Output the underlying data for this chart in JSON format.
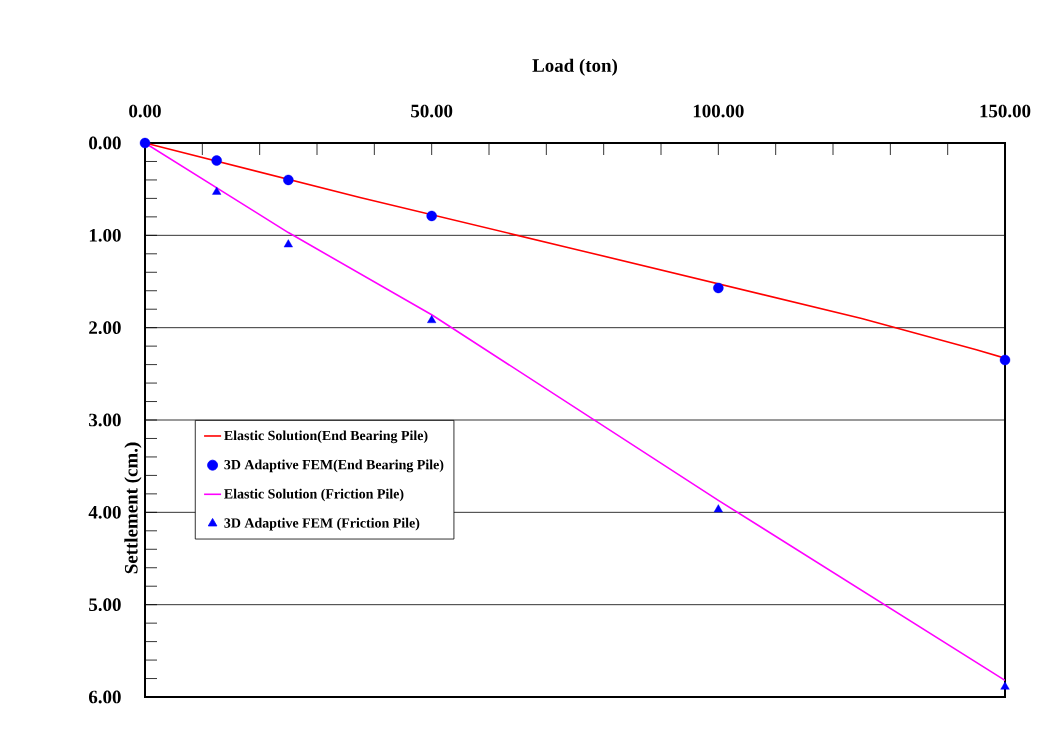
{
  "chart_data": {
    "type": "line",
    "xlabel": "Load (ton)",
    "ylabel": "Settlement (cm.)",
    "xlim": [
      0,
      150
    ],
    "ylim": [
      6,
      0
    ],
    "xticks": [
      {
        "value": 0,
        "label": "0.00"
      },
      {
        "value": 10,
        "label": null
      },
      {
        "value": 20,
        "label": null
      },
      {
        "value": 30,
        "label": null
      },
      {
        "value": 40,
        "label": null
      },
      {
        "value": 50,
        "label": "50.00"
      },
      {
        "value": 60,
        "label": null
      },
      {
        "value": 70,
        "label": null
      },
      {
        "value": 80,
        "label": null
      },
      {
        "value": 90,
        "label": null
      },
      {
        "value": 100,
        "label": "100.00"
      },
      {
        "value": 110,
        "label": null
      },
      {
        "value": 120,
        "label": null
      },
      {
        "value": 130,
        "label": null
      },
      {
        "value": 140,
        "label": null
      },
      {
        "value": 150,
        "label": "150.00"
      }
    ],
    "yticks": [
      {
        "value": 0,
        "label": "0.00"
      },
      {
        "value": 0.2,
        "label": null
      },
      {
        "value": 0.4,
        "label": null
      },
      {
        "value": 0.6,
        "label": null
      },
      {
        "value": 0.8,
        "label": null
      },
      {
        "value": 1,
        "label": "1.00"
      },
      {
        "value": 1.2,
        "label": null
      },
      {
        "value": 1.4,
        "label": null
      },
      {
        "value": 1.6,
        "label": null
      },
      {
        "value": 1.8,
        "label": null
      },
      {
        "value": 2,
        "label": "2.00"
      },
      {
        "value": 2.2,
        "label": null
      },
      {
        "value": 2.4,
        "label": null
      },
      {
        "value": 2.6,
        "label": null
      },
      {
        "value": 2.8,
        "label": null
      },
      {
        "value": 3,
        "label": "3.00"
      },
      {
        "value": 3.2,
        "label": null
      },
      {
        "value": 3.4,
        "label": null
      },
      {
        "value": 3.6,
        "label": null
      },
      {
        "value": 3.8,
        "label": null
      },
      {
        "value": 4,
        "label": "4.00"
      },
      {
        "value": 4.2,
        "label": null
      },
      {
        "value": 4.4,
        "label": null
      },
      {
        "value": 4.6,
        "label": null
      },
      {
        "value": 4.8,
        "label": null
      },
      {
        "value": 5,
        "label": "5.00"
      },
      {
        "value": 5.2,
        "label": null
      },
      {
        "value": 5.4,
        "label": null
      },
      {
        "value": 5.6,
        "label": null
      },
      {
        "value": 5.8,
        "label": null
      },
      {
        "value": 6,
        "label": "6.00"
      }
    ],
    "grid": "y",
    "legend": "left",
    "line_style": "solid",
    "series": [
      {
        "name": "Elastic Solution(End Bearing Pile)",
        "marker": "none",
        "color": "#ff0000",
        "x": [
          0,
          37.5,
          75,
          125,
          145,
          150
        ],
        "values": [
          0,
          0.59,
          1.15,
          1.9,
          2.24,
          2.33
        ]
      },
      {
        "name": "3D Adaptive FEM(End Bearing Pile)",
        "type": "scatter",
        "marker": "circle",
        "color": "#0000ff",
        "x": [
          0,
          12.5,
          25,
          50,
          100,
          150
        ],
        "values": [
          0,
          0.19,
          0.4,
          0.79,
          1.57,
          2.35
        ]
      },
      {
        "name": "Elastic Solution (Friction Pile)",
        "marker": "none",
        "color": "#ff00ff",
        "x": [
          0,
          25,
          50,
          100,
          150
        ],
        "values": [
          0,
          0.97,
          1.86,
          3.87,
          5.82
        ]
      },
      {
        "name": "3D Adaptive FEM (Friction Pile)",
        "type": "scatter",
        "marker": "triangle",
        "color": "#0000ff",
        "x": [
          12.5,
          25,
          50,
          100,
          150
        ],
        "values": [
          0.53,
          1.1,
          1.92,
          3.97,
          5.89
        ]
      }
    ]
  }
}
